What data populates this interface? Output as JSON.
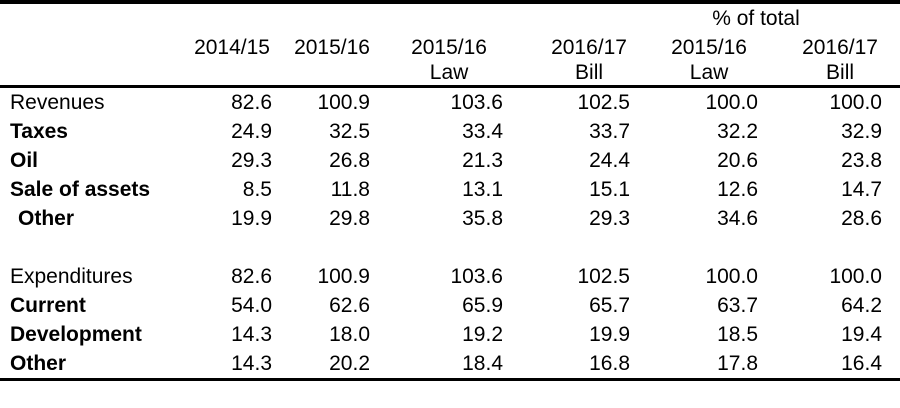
{
  "colors": {
    "background": "#ffffff",
    "text": "#000000",
    "rule": "#000000"
  },
  "table": {
    "span_header": "% of total",
    "columns": [
      {
        "year": "2014/15",
        "sub": ""
      },
      {
        "year": "2015/16",
        "sub": ""
      },
      {
        "year": "2015/16",
        "sub": "Law"
      },
      {
        "year": "2016/17",
        "sub": "Bill"
      },
      {
        "year": "2015/16",
        "sub": "Law"
      },
      {
        "year": "2016/17",
        "sub": "Bill"
      }
    ],
    "rows": [
      {
        "label": "Revenues",
        "bold": false,
        "indent": false,
        "spacer": false,
        "values": [
          "82.6",
          "100.9",
          "103.6",
          "102.5",
          "100.0",
          "100.0"
        ]
      },
      {
        "label": "Taxes",
        "bold": true,
        "indent": false,
        "spacer": false,
        "values": [
          "24.9",
          "32.5",
          "33.4",
          "33.7",
          "32.2",
          "32.9"
        ]
      },
      {
        "label": "Oil",
        "bold": true,
        "indent": false,
        "spacer": false,
        "values": [
          "29.3",
          "26.8",
          "21.3",
          "24.4",
          "20.6",
          "23.8"
        ]
      },
      {
        "label": "Sale of assets",
        "bold": true,
        "indent": false,
        "spacer": false,
        "values": [
          "8.5",
          "11.8",
          "13.1",
          "15.1",
          "12.6",
          "14.7"
        ]
      },
      {
        "label": "Other",
        "bold": true,
        "indent": true,
        "spacer": false,
        "values": [
          "19.9",
          "29.8",
          "35.8",
          "29.3",
          "34.6",
          "28.6"
        ]
      },
      {
        "label": "",
        "bold": false,
        "indent": false,
        "spacer": true,
        "values": [
          "",
          "",
          "",
          "",
          "",
          ""
        ]
      },
      {
        "label": "Expenditures",
        "bold": false,
        "indent": false,
        "spacer": false,
        "values": [
          "82.6",
          "100.9",
          "103.6",
          "102.5",
          "100.0",
          "100.0"
        ]
      },
      {
        "label": "Current",
        "bold": true,
        "indent": false,
        "spacer": false,
        "values": [
          "54.0",
          "62.6",
          "65.9",
          "65.7",
          "63.7",
          "64.2"
        ]
      },
      {
        "label": "Development",
        "bold": true,
        "indent": false,
        "spacer": false,
        "values": [
          "14.3",
          "18.0",
          "19.2",
          "19.9",
          "18.5",
          "19.4"
        ]
      },
      {
        "label": "Other",
        "bold": true,
        "indent": false,
        "spacer": false,
        "values": [
          "14.3",
          "20.2",
          "18.4",
          "16.8",
          "17.8",
          "16.4"
        ]
      }
    ]
  }
}
